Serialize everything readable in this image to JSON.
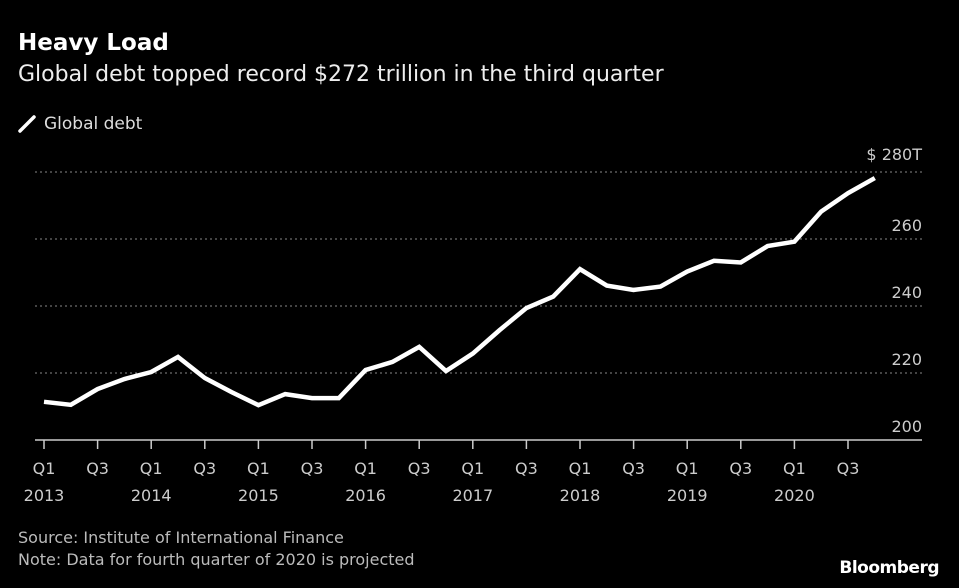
{
  "title": "Heavy Load",
  "subtitle": "Global debt topped record $272 trillion in the third quarter",
  "source": "Source: Institute of International Finance",
  "note": "Note: Data for fourth quarter of 2020 is projected",
  "logo": "Bloomberg",
  "chart_data": {
    "type": "line",
    "title": "Heavy Load",
    "subtitle": "Global debt topped record $272 trillion in the third quarter",
    "ylabel": "",
    "xlabel": "",
    "ylim": [
      200,
      280
    ],
    "yticks": [
      200,
      220,
      240,
      260,
      280
    ],
    "ytick_labels": [
      "200",
      "220",
      "240",
      "260",
      "$ 280T"
    ],
    "grid": true,
    "legend_position": "top-left",
    "line_color": "#ffffff",
    "background": "#000000",
    "x": [
      "Q1 2013",
      "Q2 2013",
      "Q3 2013",
      "Q4 2013",
      "Q1 2014",
      "Q2 2014",
      "Q3 2014",
      "Q4 2014",
      "Q1 2015",
      "Q2 2015",
      "Q3 2015",
      "Q4 2015",
      "Q1 2016",
      "Q2 2016",
      "Q3 2016",
      "Q4 2016",
      "Q1 2017",
      "Q2 2017",
      "Q3 2017",
      "Q4 2017",
      "Q1 2018",
      "Q2 2018",
      "Q3 2018",
      "Q4 2018",
      "Q1 2019",
      "Q2 2019",
      "Q3 2019",
      "Q4 2019",
      "Q1 2020",
      "Q2 2020",
      "Q3 2020",
      "Q4 2020"
    ],
    "xtick_labels": [
      {
        "q": "Q1",
        "year": "2013"
      },
      {
        "q": "Q3",
        "year": ""
      },
      {
        "q": "Q1",
        "year": "2014"
      },
      {
        "q": "Q3",
        "year": ""
      },
      {
        "q": "Q1",
        "year": "2015"
      },
      {
        "q": "Q3",
        "year": ""
      },
      {
        "q": "Q1",
        "year": "2016"
      },
      {
        "q": "Q3",
        "year": ""
      },
      {
        "q": "Q1",
        "year": "2017"
      },
      {
        "q": "Q3",
        "year": ""
      },
      {
        "q": "Q1",
        "year": "2018"
      },
      {
        "q": "Q3",
        "year": ""
      },
      {
        "q": "Q1",
        "year": "2019"
      },
      {
        "q": "Q3",
        "year": ""
      },
      {
        "q": "Q1",
        "year": "2020"
      },
      {
        "q": "Q3",
        "year": ""
      }
    ],
    "series": [
      {
        "name": "Global debt",
        "values": [
          211.4,
          210.5,
          215.2,
          218.2,
          220.3,
          224.8,
          218.5,
          214.3,
          210.4,
          213.7,
          212.5,
          212.5,
          220.9,
          223.3,
          227.8,
          220.6,
          225.8,
          232.8,
          239.4,
          242.8,
          251.0,
          246.1,
          244.8,
          245.8,
          250.3,
          253.5,
          253.0,
          257.9,
          259.2,
          268.2,
          273.7,
          278.2
        ]
      }
    ]
  }
}
